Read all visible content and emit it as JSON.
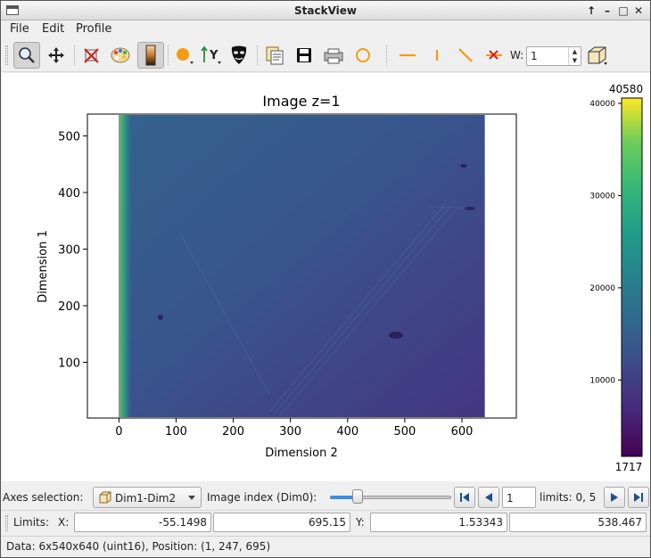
{
  "window": {
    "title": "StackView"
  },
  "menubar": {
    "items": [
      "File",
      "Edit",
      "Profile"
    ]
  },
  "toolbar": {
    "icons": [
      "zoom-icon",
      "pan-icon",
      "reset-zoom-icon",
      "colormap-icon",
      "colorbar-icon",
      "marker-icon",
      "y-axis-icon",
      "mask-icon",
      "copy-icon",
      "save-icon",
      "print-icon",
      "circle-roi-icon",
      "hline-profile-icon",
      "vline-profile-icon",
      "diagonal-profile-icon",
      "clear-profile-icon",
      "cube-icon"
    ],
    "width_label": "W:",
    "width_value": "1",
    "accent_orange": "#f39c12"
  },
  "plot": {
    "title": "Image z=1",
    "xlabel": "Dimension 2",
    "ylabel": "Dimension 1",
    "xticks": [
      "0",
      "100",
      "200",
      "300",
      "400",
      "500",
      "600"
    ],
    "yticks": [
      "100",
      "200",
      "300",
      "400",
      "500"
    ],
    "colorbar_max_label": "40580",
    "colorbar_min_label": "1717",
    "colorbar_ticks": [
      "10000",
      "20000",
      "30000",
      "40000"
    ]
  },
  "chart_data": {
    "type": "heatmap",
    "title": "Image z=1",
    "xlabel": "Dimension 2",
    "ylabel": "Dimension 1",
    "xlim": [
      -55.1498,
      695.15
    ],
    "ylim": [
      1.53343,
      538.467
    ],
    "image_extent_x": [
      0,
      640
    ],
    "image_extent_y": [
      0,
      540
    ],
    "xticks": [
      0,
      100,
      200,
      300,
      400,
      500,
      600
    ],
    "yticks": [
      100,
      200,
      300,
      400,
      500
    ],
    "colormap": "viridis",
    "value_range": [
      1717,
      40580
    ],
    "colorbar_ticks": [
      10000,
      20000,
      30000,
      40000
    ],
    "colors": {
      "low": "#440154",
      "mid": "#21918c",
      "high": "#fde725",
      "image_base": "#3b4f8a"
    }
  },
  "axes_row": {
    "axes_label": "Axes selection:",
    "axes_value": "Dim1-Dim2",
    "index_label": "Image index (Dim0):",
    "index_value": "1",
    "limits_text": "limits: 0, 5",
    "slider_position": 0.2
  },
  "limits_row": {
    "label": "Limits:",
    "x_label": "X:",
    "x_min": "-55.1498",
    "x_max": "695.15",
    "y_label": "Y:",
    "y_min": "1.53343",
    "y_max": "538.467"
  },
  "status": {
    "text": "Data: 6x540x640 (uint16), Position: (1, 247, 695)"
  }
}
